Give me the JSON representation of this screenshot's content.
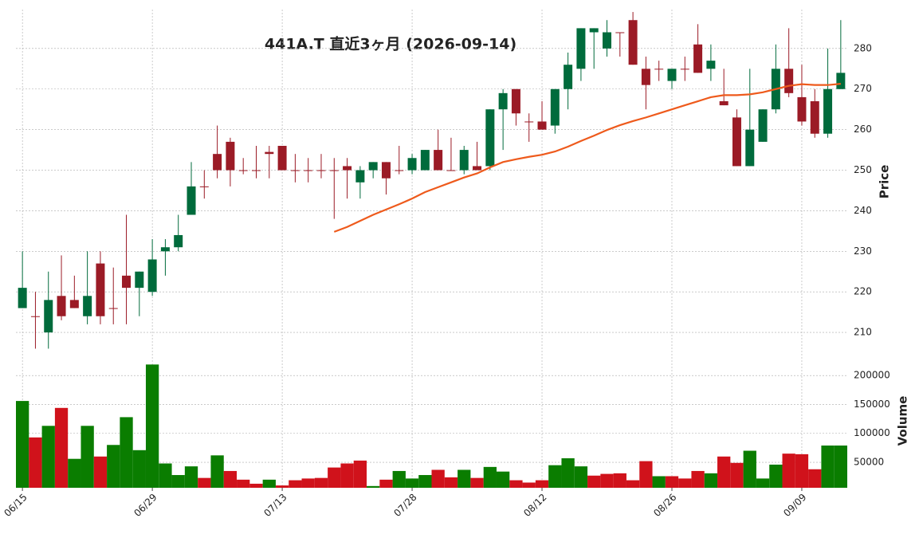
{
  "chart_data": {
    "type": "candlestick",
    "title": "441A.T 直近3ヶ月 (2026-09-14)",
    "categories": [
      "06/15",
      null,
      null,
      null,
      null,
      null,
      null,
      null,
      null,
      null,
      "06/29",
      null,
      null,
      null,
      null,
      null,
      null,
      null,
      null,
      null,
      "07/13",
      null,
      null,
      null,
      null,
      null,
      null,
      null,
      null,
      null,
      "07/28",
      null,
      null,
      null,
      null,
      null,
      null,
      null,
      null,
      null,
      "08/12",
      null,
      null,
      null,
      null,
      null,
      null,
      null,
      null,
      null,
      "08/26",
      null,
      null,
      null,
      null,
      null,
      null,
      null,
      null,
      null,
      "09/09",
      null,
      null,
      null
    ],
    "open": [
      216,
      214,
      210,
      219,
      218,
      214,
      227,
      216,
      224,
      221,
      220,
      230,
      231,
      239,
      246,
      254,
      257,
      250,
      250,
      254.5,
      256,
      250,
      250,
      250,
      250,
      251,
      247,
      250,
      252,
      250,
      250,
      250,
      255,
      250,
      250,
      251,
      251,
      265,
      270,
      262,
      262,
      261,
      270,
      275,
      284,
      280,
      284,
      287,
      275,
      275,
      272,
      275,
      281,
      275,
      267,
      263,
      251,
      257,
      265,
      275,
      268,
      267,
      259,
      270
    ],
    "high": [
      230,
      220,
      225,
      229,
      224,
      230,
      230,
      226,
      239,
      225,
      233,
      233,
      239,
      252,
      250,
      261,
      258,
      253,
      256,
      256,
      256,
      254,
      253,
      254,
      253,
      253,
      251,
      252,
      252,
      256,
      254,
      255,
      260,
      258,
      256,
      257,
      265,
      270,
      270,
      264,
      267,
      270,
      279,
      285,
      285,
      287,
      284,
      289,
      278,
      277,
      275,
      278,
      286,
      281,
      275,
      265,
      275,
      265,
      281,
      285,
      276,
      270,
      280,
      287
    ],
    "low": [
      216,
      206,
      206,
      213,
      216,
      212,
      212,
      212,
      212,
      214,
      219,
      224,
      230,
      239,
      243,
      248,
      246,
      249,
      248,
      248,
      250,
      247,
      247,
      248,
      238,
      243,
      243,
      248,
      244,
      249,
      249,
      250,
      250,
      250,
      249,
      250,
      250,
      255,
      261,
      257,
      260,
      259,
      265,
      272,
      275,
      278,
      278,
      276,
      265,
      272,
      270,
      272,
      274,
      272,
      266,
      251,
      251,
      257,
      264,
      268,
      261,
      258,
      258,
      270
    ],
    "close": [
      221,
      214,
      218,
      214,
      216,
      219,
      214,
      216,
      221,
      225,
      228,
      231,
      234,
      246,
      246,
      250,
      250,
      250,
      250,
      254,
      250,
      250,
      250,
      250,
      250,
      250,
      250,
      252,
      248,
      250,
      253,
      255,
      250,
      250,
      255,
      250,
      265,
      269,
      264,
      262,
      260,
      270,
      276,
      285,
      285,
      284,
      284,
      276,
      271,
      275,
      275,
      275,
      274,
      277,
      266,
      251,
      260,
      265,
      275,
      269,
      262,
      259,
      270,
      274
    ],
    "up_color": "#006b3c",
    "down_color": "#9b1b26",
    "ylabel": "Price",
    "ylim": [
      205.5,
      289.6
    ],
    "yticks": [
      210,
      220,
      230,
      240,
      250,
      260,
      270,
      280
    ],
    "grid": true,
    "moving_average": {
      "color": "#ee5a1c",
      "values": [
        null,
        null,
        null,
        null,
        null,
        null,
        null,
        null,
        null,
        null,
        null,
        null,
        null,
        null,
        null,
        null,
        null,
        null,
        null,
        null,
        null,
        null,
        null,
        null,
        234.8,
        236,
        237.5,
        239,
        240.3,
        241.6,
        243,
        244.6,
        245.8,
        247,
        248.2,
        249.2,
        250.7,
        252,
        252.7,
        253.3,
        253.8,
        254.6,
        255.8,
        257.2,
        258.5,
        259.9,
        261.1,
        262.1,
        263,
        264,
        265,
        266,
        267,
        268,
        268.5,
        268.5,
        268.7,
        269.2,
        270,
        270.8,
        271.2,
        271,
        271,
        271.3
      ]
    },
    "volume": {
      "ylabel": "Volume",
      "up_color": "#0a7d00",
      "down_color": "#d0121b",
      "ylim": [
        6000,
        236000
      ],
      "yticks": [
        50000,
        100000,
        150000,
        200000
      ],
      "values": [
        156000,
        93000,
        113000,
        144000,
        56000,
        113000,
        60000,
        80000,
        128000,
        71000,
        219000,
        48000,
        28000,
        43000,
        23000,
        62000,
        35000,
        20000,
        13000,
        20000,
        10000,
        19000,
        22000,
        23000,
        41000,
        48000,
        53000,
        9000,
        20000,
        35000,
        22000,
        28000,
        37000,
        24000,
        37000,
        23000,
        42000,
        34000,
        19000,
        15000,
        19000,
        45000,
        57000,
        43000,
        27000,
        30000,
        31000,
        19000,
        52000,
        26000,
        26000,
        22000,
        35000,
        31000,
        60000,
        49000,
        70000,
        22000,
        46000,
        65000,
        64000,
        38000,
        79000,
        79000
      ]
    }
  }
}
